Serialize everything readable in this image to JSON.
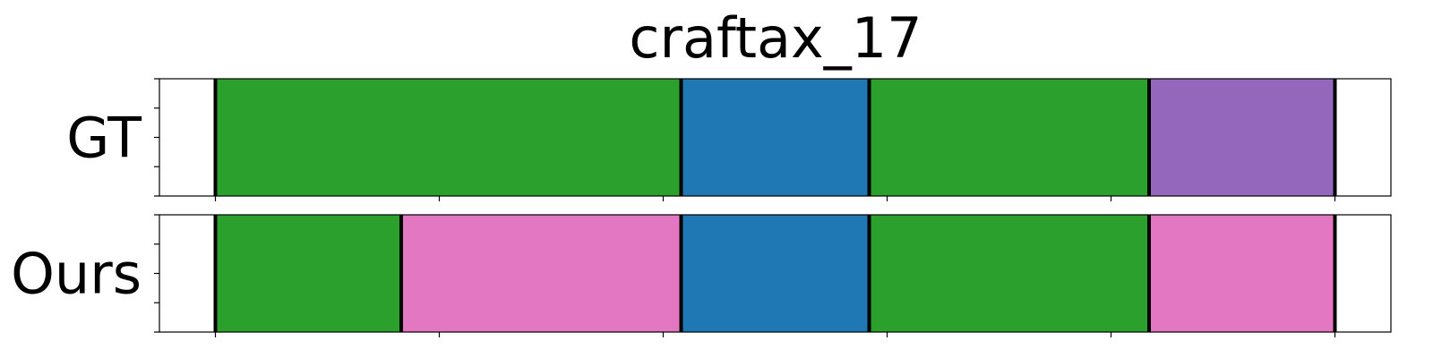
{
  "chart_data": {
    "type": "segmentation-timeline",
    "title": "craftax_17",
    "x_range": [
      0,
      550
    ],
    "x_ticks": [
      25,
      125,
      225,
      325,
      425,
      525
    ],
    "y_ticks_per_row": 5,
    "rows": [
      {
        "label": "GT",
        "segments": [
          {
            "start": 25,
            "end": 233,
            "color": "#2ca02c"
          },
          {
            "start": 233,
            "end": 317,
            "color": "#1f77b4"
          },
          {
            "start": 317,
            "end": 442,
            "color": "#2ca02c"
          },
          {
            "start": 442,
            "end": 525,
            "color": "#9467bd"
          }
        ]
      },
      {
        "label": "Ours",
        "segments": [
          {
            "start": 25,
            "end": 108,
            "color": "#2ca02c"
          },
          {
            "start": 108,
            "end": 233,
            "color": "#e377c2"
          },
          {
            "start": 233,
            "end": 317,
            "color": "#1f77b4"
          },
          {
            "start": 317,
            "end": 442,
            "color": "#2ca02c"
          },
          {
            "start": 442,
            "end": 525,
            "color": "#e377c2"
          }
        ]
      }
    ]
  }
}
